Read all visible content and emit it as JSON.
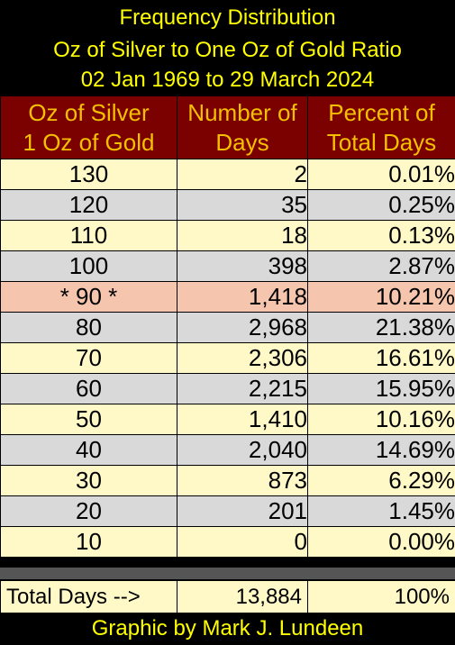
{
  "title": {
    "line1": "Frequency Distribution",
    "line2": "Oz of Silver to One Oz of Gold Ratio",
    "line3": "02 Jan 1969 to 29 March 2024"
  },
  "headers": {
    "col1_line1": "Oz of Silver",
    "col1_line2": "1 Oz of Gold",
    "col2_line1": "Number of",
    "col2_line2": "Days",
    "col3_line1": "Percent of",
    "col3_line2": "Total Days"
  },
  "colors": {
    "title_text": "#ffff00",
    "header_bg": "#7b0000",
    "header_text": "#f4c000",
    "row_odd": "#fff9c8",
    "row_even": "#d9d9d9",
    "row_highlight": "#f6c5ad"
  },
  "rows": [
    {
      "ratio": "130",
      "days": "2",
      "pct": "0.01%"
    },
    {
      "ratio": "120",
      "days": "35",
      "pct": "0.25%"
    },
    {
      "ratio": "110",
      "days": "18",
      "pct": "0.13%"
    },
    {
      "ratio": "100",
      "days": "398",
      "pct": "2.87%"
    },
    {
      "ratio": "* 90 *",
      "days": "1,418",
      "pct": "10.21%"
    },
    {
      "ratio": "80",
      "days": "2,968",
      "pct": "21.38%"
    },
    {
      "ratio": "70",
      "days": "2,306",
      "pct": "16.61%"
    },
    {
      "ratio": "60",
      "days": "2,215",
      "pct": "15.95%"
    },
    {
      "ratio": "50",
      "days": "1,410",
      "pct": "10.16%"
    },
    {
      "ratio": "40",
      "days": "2,040",
      "pct": "14.69%"
    },
    {
      "ratio": "30",
      "days": "873",
      "pct": "6.29%"
    },
    {
      "ratio": "20",
      "days": "201",
      "pct": "1.45%"
    },
    {
      "ratio": "10",
      "days": "0",
      "pct": "0.00%"
    }
  ],
  "total": {
    "label": "Total Days -->",
    "days": "13,884",
    "pct": "100%"
  },
  "footer": "Graphic by Mark J. Lundeen",
  "chart_data": {
    "type": "table",
    "columns": [
      "Oz of Silver 1 Oz of Gold",
      "Number of Days",
      "Percent of Total Days"
    ],
    "categories": [
      "130",
      "120",
      "110",
      "100",
      "90",
      "80",
      "70",
      "60",
      "50",
      "40",
      "30",
      "20",
      "10"
    ],
    "series": [
      {
        "name": "Number of Days",
        "values": [
          2,
          35,
          18,
          398,
          1418,
          2968,
          2306,
          2215,
          1410,
          2040,
          873,
          201,
          0
        ]
      },
      {
        "name": "Percent of Total Days",
        "values": [
          0.01,
          0.25,
          0.13,
          2.87,
          10.21,
          21.38,
          16.61,
          15.95,
          10.16,
          14.69,
          6.29,
          1.45,
          0.0
        ]
      }
    ],
    "highlighted_category": "90",
    "total_days": 13884,
    "total_percent": 100
  }
}
